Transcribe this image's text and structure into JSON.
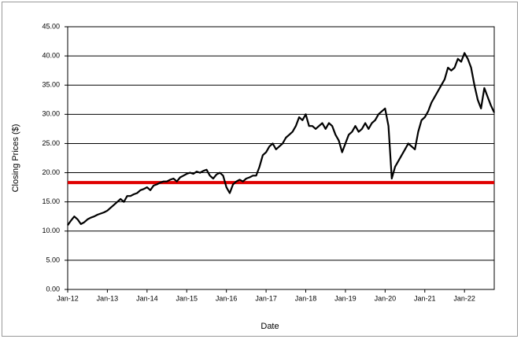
{
  "chart_data": {
    "type": "line",
    "x_label": "Date",
    "y_label": "Closing Prices ($)",
    "x": [
      "Jan-12",
      "Feb-12",
      "Mar-12",
      "Apr-12",
      "May-12",
      "Jun-12",
      "Jul-12",
      "Aug-12",
      "Sep-12",
      "Oct-12",
      "Nov-12",
      "Dec-12",
      "Jan-13",
      "Feb-13",
      "Mar-13",
      "Apr-13",
      "May-13",
      "Jun-13",
      "Jul-13",
      "Aug-13",
      "Sep-13",
      "Oct-13",
      "Nov-13",
      "Dec-13",
      "Jan-14",
      "Feb-14",
      "Mar-14",
      "Apr-14",
      "May-14",
      "Jun-14",
      "Jul-14",
      "Aug-14",
      "Sep-14",
      "Oct-14",
      "Nov-14",
      "Dec-14",
      "Jan-15",
      "Feb-15",
      "Mar-15",
      "Apr-15",
      "May-15",
      "Jun-15",
      "Jul-15",
      "Aug-15",
      "Sep-15",
      "Oct-15",
      "Nov-15",
      "Dec-15",
      "Jan-16",
      "Feb-16",
      "Mar-16",
      "Apr-16",
      "May-16",
      "Jun-16",
      "Jul-16",
      "Aug-16",
      "Sep-16",
      "Oct-16",
      "Nov-16",
      "Dec-16",
      "Jan-17",
      "Feb-17",
      "Mar-17",
      "Apr-17",
      "May-17",
      "Jun-17",
      "Jul-17",
      "Aug-17",
      "Sep-17",
      "Oct-17",
      "Nov-17",
      "Dec-17",
      "Jan-18",
      "Feb-18",
      "Mar-18",
      "Apr-18",
      "May-18",
      "Jun-18",
      "Jul-18",
      "Aug-18",
      "Sep-18",
      "Oct-18",
      "Nov-18",
      "Dec-18",
      "Jan-19",
      "Feb-19",
      "Mar-19",
      "Apr-19",
      "May-19",
      "Jun-19",
      "Jul-19",
      "Aug-19",
      "Sep-19",
      "Oct-19",
      "Nov-19",
      "Dec-19",
      "Jan-20",
      "Feb-20",
      "Mar-20",
      "Apr-20",
      "May-20",
      "Jun-20",
      "Jul-20",
      "Aug-20",
      "Sep-20",
      "Oct-20",
      "Nov-20",
      "Dec-20",
      "Jan-21",
      "Feb-21",
      "Mar-21",
      "Apr-21",
      "May-21",
      "Jun-21",
      "Jul-21",
      "Aug-21",
      "Sep-21",
      "Oct-21",
      "Nov-21",
      "Dec-21",
      "Jan-22",
      "Feb-22",
      "Mar-22",
      "Apr-22",
      "May-22",
      "Jun-22",
      "Jul-22",
      "Aug-22",
      "Sep-22",
      "Oct-22"
    ],
    "series": [
      {
        "color": "#000000",
        "values": [
          11,
          11.8,
          12.5,
          12,
          11.2,
          11.5,
          12,
          12.3,
          12.5,
          12.8,
          13,
          13.2,
          13.5,
          14,
          14.5,
          15,
          15.5,
          15,
          16,
          16,
          16.3,
          16.5,
          17,
          17.2,
          17.5,
          17,
          17.8,
          18,
          18.3,
          18.5,
          18.5,
          18.8,
          19,
          18.5,
          19.2,
          19.5,
          19.8,
          20,
          19.8,
          20.2,
          20,
          20.3,
          20.5,
          19.5,
          19,
          19.7,
          20,
          19.5,
          17.5,
          16.5,
          18,
          18.5,
          18.8,
          18.5,
          19,
          19.2,
          19.5,
          19.5,
          21,
          23,
          23.5,
          24.5,
          25,
          24,
          24.5,
          25,
          26,
          26.5,
          27,
          28,
          29.5,
          29,
          30,
          28,
          28,
          27.5,
          28,
          28.5,
          27.5,
          28.5,
          28,
          26.5,
          25.5,
          23.5,
          25,
          26.5,
          27,
          28,
          27,
          27.5,
          28.5,
          27.5,
          28.5,
          29,
          30,
          30.5,
          31,
          28,
          19,
          21,
          22,
          23,
          24,
          25,
          24.5,
          24,
          27,
          29,
          29.5,
          30.5,
          32,
          33,
          34,
          35,
          36,
          38,
          37.5,
          38,
          39.5,
          39,
          40.5,
          39.5,
          38,
          35,
          32.5,
          31,
          34.5,
          33,
          31.5,
          30.3
        ]
      }
    ],
    "hline": {
      "value": 18.3,
      "color": "#e00000"
    },
    "xticks": [
      "Jan-12",
      "Jan-13",
      "Jan-14",
      "Jan-15",
      "Jan-16",
      "Jan-17",
      "Jan-18",
      "Jan-19",
      "Jan-20",
      "Jan-21",
      "Jan-22"
    ],
    "ylim": [
      0,
      45
    ],
    "yticks": [
      {
        "value": 0,
        "label": "0.00"
      },
      {
        "value": 5,
        "label": "5.00"
      },
      {
        "value": 10,
        "label": "10.00"
      },
      {
        "value": 15,
        "label": "15.00"
      },
      {
        "value": 20,
        "label": "20.00"
      },
      {
        "value": 25,
        "label": "25.00"
      },
      {
        "value": 30,
        "label": "30.00"
      },
      {
        "value": 35,
        "label": "35.00"
      },
      {
        "value": 40,
        "label": "40.00"
      },
      {
        "value": 45,
        "label": "45.00"
      }
    ],
    "grid": true
  }
}
